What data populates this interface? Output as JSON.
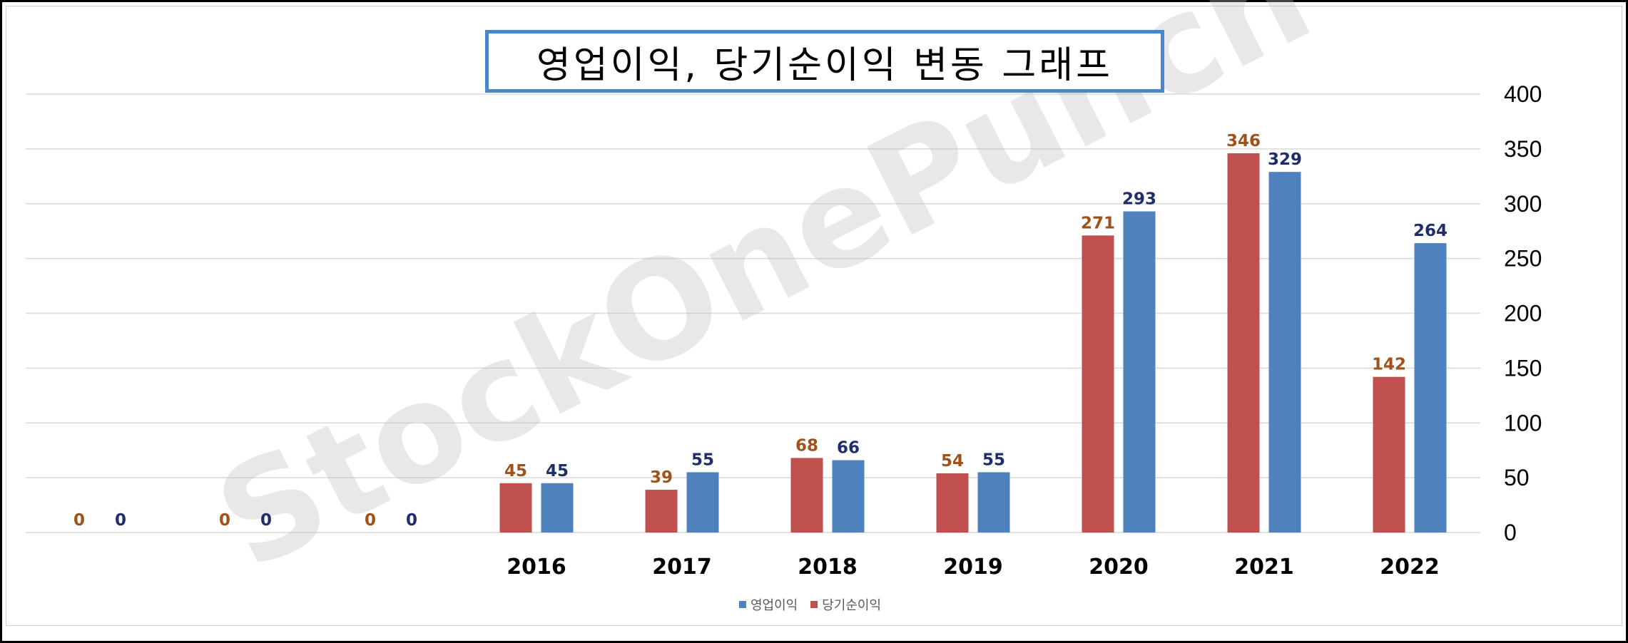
{
  "chart_data": {
    "type": "bar",
    "title": "영업이익, 당기순이익 변동 그래프",
    "categories": [
      "",
      "",
      "",
      "2016",
      "2017",
      "2018",
      "2019",
      "2020",
      "2021",
      "2022"
    ],
    "series": [
      {
        "name": "당기순이익",
        "color": "#c0504d",
        "label_color": "#a0521b",
        "values": [
          0,
          0,
          0,
          45,
          39,
          68,
          54,
          271,
          346,
          142
        ]
      },
      {
        "name": "영업이익",
        "color": "#4f81bd",
        "label_color": "#1f2d6b",
        "values": [
          0,
          0,
          0,
          45,
          55,
          66,
          55,
          293,
          329,
          264
        ]
      }
    ],
    "ylim": [
      0,
      400
    ],
    "yticks": [
      0,
      50,
      100,
      150,
      200,
      250,
      300,
      350,
      400
    ],
    "y_axis_position": "right",
    "grid": true,
    "legend_position": "bottom",
    "legend_order": [
      "영업이익",
      "당기순이익"
    ],
    "watermark": "StockOnePunch"
  }
}
